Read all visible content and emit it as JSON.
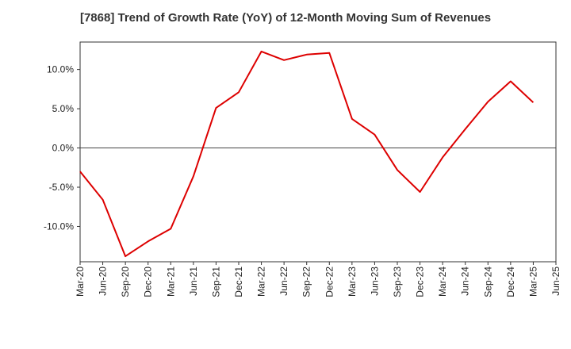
{
  "chart_data": {
    "type": "line",
    "title": "[7868]  Trend of Growth Rate (YoY) of 12-Month Moving Sum of Revenues",
    "xlabel": "",
    "ylabel": "",
    "x_ticks": [
      "Mar-20",
      "Jun-20",
      "Sep-20",
      "Dec-20",
      "Mar-21",
      "Jun-21",
      "Sep-21",
      "Dec-21",
      "Mar-22",
      "Jun-22",
      "Sep-22",
      "Dec-22",
      "Mar-23",
      "Jun-23",
      "Sep-23",
      "Dec-23",
      "Mar-24",
      "Jun-24",
      "Sep-24",
      "Dec-24",
      "Mar-25",
      "Jun-25"
    ],
    "y_ticks": [
      {
        "value": 10,
        "label": "10.0%"
      },
      {
        "value": 5,
        "label": "5.0%"
      },
      {
        "value": 0,
        "label": "0.0%"
      },
      {
        "value": -5,
        "label": "-5.0%"
      },
      {
        "value": -10,
        "label": "-10.0%"
      }
    ],
    "ylim": [
      -14.5,
      13.5
    ],
    "grid": true,
    "series": [
      {
        "name": "",
        "color": "#dd0000",
        "values": [
          -3.0,
          -6.6,
          -13.8,
          -11.9,
          -10.3,
          -3.6,
          5.1,
          7.1,
          12.3,
          11.2,
          11.9,
          12.1,
          3.7,
          1.7,
          -2.8,
          -5.6,
          -1.2,
          2.4,
          5.9,
          8.5,
          5.8
        ]
      }
    ]
  }
}
